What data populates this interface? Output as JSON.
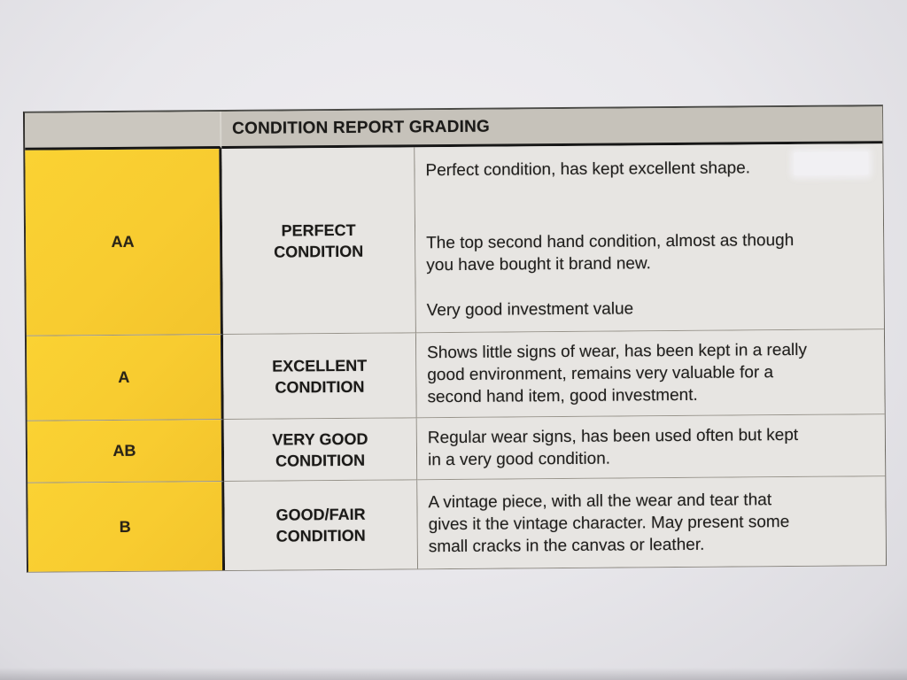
{
  "title": "CONDITION REPORT GRADING",
  "colors": {
    "grade_column_yellow": "#f8cc30",
    "header_gray": "#c6c2ba",
    "cell_gray": "#e7e5e2",
    "paper": "#e9e8ec",
    "rule_dark": "#161616",
    "rule_light": "#97938a"
  },
  "rows": [
    {
      "grade": "AA",
      "condition": [
        "PERFECT",
        "CONDITION"
      ],
      "paragraphs": [
        [
          "Perfect condition, has kept excellent shape."
        ],
        [
          "The top second hand condition, almost as though",
          "you have bought it brand new."
        ],
        [
          "Very good investment value"
        ]
      ]
    },
    {
      "grade": "A",
      "condition": [
        "EXCELLENT",
        "CONDITION"
      ],
      "paragraphs": [
        [
          "Shows little signs of wear, has been kept in a really",
          "good environment, remains very valuable for a",
          "second hand item, good investment."
        ]
      ]
    },
    {
      "grade": "AB",
      "condition": [
        "VERY GOOD",
        "CONDITION"
      ],
      "paragraphs": [
        [
          "Regular wear signs, has been used often but kept",
          "in a very good condition."
        ]
      ]
    },
    {
      "grade": "B",
      "condition": [
        "GOOD/FAIR",
        "CONDITION"
      ],
      "paragraphs": [
        [
          "A vintage piece, with all the wear and tear that",
          "gives it the vintage character. May present some",
          "small cracks in the canvas or leather."
        ]
      ]
    }
  ]
}
